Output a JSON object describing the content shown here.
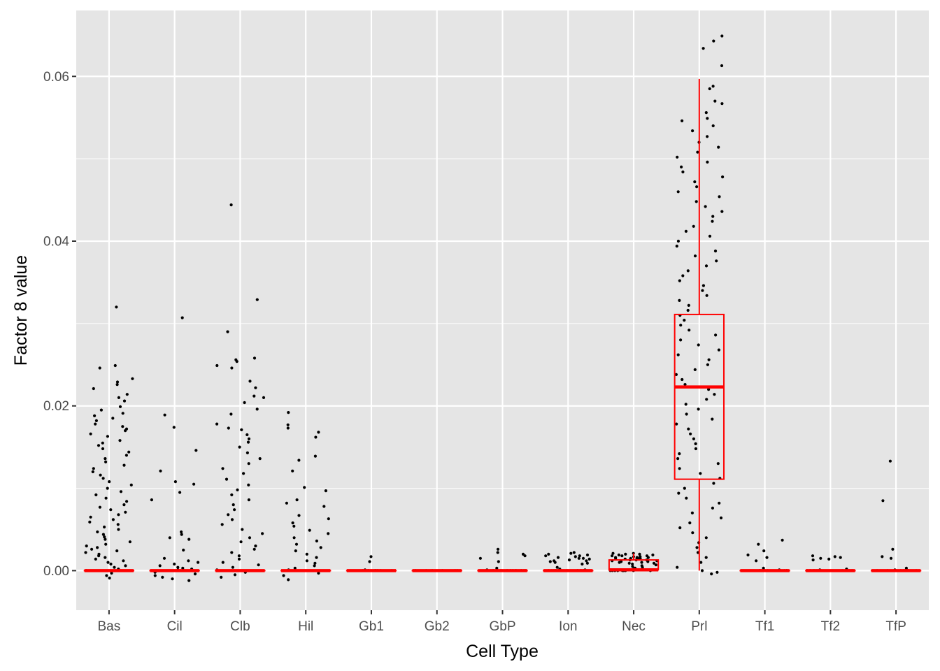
{
  "chart_data": {
    "type": "box_jitter",
    "xlabel": "Cell Type",
    "ylabel": "Factor 8 value",
    "ylim": [
      -0.0048,
      0.068
    ],
    "yticks": [
      0.0,
      0.02,
      0.04,
      0.06
    ],
    "ytick_labels": [
      "0.00",
      "0.02",
      "0.04",
      "0.06"
    ],
    "grid": true,
    "colors": {
      "panel": "#e5e5e5",
      "grid": "#ffffff",
      "box": "#ff0000",
      "points": "#000000"
    },
    "categories": [
      "Bas",
      "Cil",
      "Clb",
      "Hil",
      "Gb1",
      "Gb2",
      "GbP",
      "Ion",
      "Nec",
      "Prl",
      "Tf1",
      "Tf2",
      "TfP"
    ],
    "boxes": [
      {
        "category": "Bas",
        "q1": 0,
        "median": 0,
        "q3": 0,
        "whisker_low": 0,
        "whisker_high": 0
      },
      {
        "category": "Cil",
        "q1": 0,
        "median": 0,
        "q3": 0,
        "whisker_low": 0,
        "whisker_high": 0
      },
      {
        "category": "Clb",
        "q1": 0,
        "median": 0,
        "q3": 0,
        "whisker_low": 0,
        "whisker_high": 0
      },
      {
        "category": "Hil",
        "q1": 0,
        "median": 0,
        "q3": 0,
        "whisker_low": 0,
        "whisker_high": 0
      },
      {
        "category": "Gb1",
        "q1": 0,
        "median": 0,
        "q3": 0,
        "whisker_low": 0,
        "whisker_high": 0
      },
      {
        "category": "Gb2",
        "q1": 0,
        "median": 0,
        "q3": 0,
        "whisker_low": 0,
        "whisker_high": 0
      },
      {
        "category": "GbP",
        "q1": 0,
        "median": 0,
        "q3": 0,
        "whisker_low": 0,
        "whisker_high": 0
      },
      {
        "category": "Ion",
        "q1": 0,
        "median": 0,
        "q3": 0,
        "whisker_low": 0,
        "whisker_high": 0
      },
      {
        "category": "Nec",
        "q1": 0.0001,
        "median": 0.0001,
        "q3": 0.0013,
        "whisker_low": 0.0,
        "whisker_high": 0.0021
      },
      {
        "category": "Prl",
        "q1": 0.0111,
        "median": 0.0223,
        "q3": 0.0311,
        "whisker_low": 0.0,
        "whisker_high": 0.0597
      },
      {
        "category": "Tf1",
        "q1": 0,
        "median": 0,
        "q3": 0,
        "whisker_low": 0,
        "whisker_high": 0
      },
      {
        "category": "Tf2",
        "q1": 0,
        "median": 0,
        "q3": 0,
        "whisker_low": 0,
        "whisker_high": 0
      },
      {
        "category": "TfP",
        "q1": 0,
        "median": 0,
        "q3": 0,
        "whisker_low": 0,
        "whisker_high": 0
      }
    ],
    "jitter_points": [
      {
        "category": "Bas",
        "values": [
          0.032,
          0.0246,
          0.0249,
          0.0233,
          0.0229,
          0.0226,
          0.0221,
          0.0214,
          0.021,
          0.0206,
          0.0199,
          0.0195,
          0.0191,
          0.0188,
          0.0185,
          0.0182,
          0.0178,
          0.0175,
          0.0172,
          0.017,
          0.0166,
          0.0163,
          0.0158,
          0.0155,
          0.0152,
          0.0148,
          0.0144,
          0.014,
          0.0136,
          0.0132,
          0.0128,
          0.0124,
          0.012,
          0.0116,
          0.0112,
          0.0108,
          0.0104,
          0.01,
          0.0096,
          0.0092,
          0.0088,
          0.0084,
          0.008,
          0.0077,
          0.0074,
          0.0071,
          0.0068,
          0.0065,
          0.0062,
          0.0059,
          0.0056,
          0.0053,
          0.005,
          0.0047,
          0.0044,
          0.0041,
          0.0038,
          0.0035,
          0.0032,
          0.003,
          0.0028,
          0.0026,
          0.0024,
          0.0022,
          0.002,
          0.0018,
          0.0016,
          0.0014,
          0.0012,
          0.001,
          0.0008,
          0.0006,
          0.0004,
          0.0002,
          0.0,
          -0.0003,
          -0.0006,
          -0.0009
        ]
      },
      {
        "category": "Cil",
        "values": [
          0.0307,
          0.0189,
          0.0174,
          0.0146,
          0.0121,
          0.0108,
          0.0105,
          0.0095,
          0.0086,
          0.0047,
          0.0044,
          0.004,
          0.0038,
          0.0025,
          0.0015,
          0.0012,
          0.001,
          0.0008,
          0.0006,
          0.0004,
          0.0003,
          0.0002,
          0.0001,
          0.0,
          -0.0002,
          -0.0004,
          -0.0006,
          -0.0008,
          -0.001,
          -0.0012
        ]
      },
      {
        "category": "Clb",
        "values": [
          0.0444,
          0.0329,
          0.029,
          0.0258,
          0.0256,
          0.0254,
          0.0249,
          0.0246,
          0.023,
          0.0222,
          0.0212,
          0.021,
          0.0204,
          0.0196,
          0.019,
          0.0178,
          0.0173,
          0.0171,
          0.0165,
          0.016,
          0.0156,
          0.015,
          0.0143,
          0.0136,
          0.013,
          0.0124,
          0.0118,
          0.0111,
          0.0104,
          0.0098,
          0.0092,
          0.0086,
          0.008,
          0.0074,
          0.0068,
          0.0062,
          0.0056,
          0.005,
          0.0045,
          0.004,
          0.0035,
          0.003,
          0.0026,
          0.0022,
          0.0018,
          0.0014,
          0.001,
          0.0007,
          0.0004,
          0.0001,
          -0.0002,
          -0.0005,
          -0.0008
        ]
      },
      {
        "category": "Hil",
        "values": [
          0.0192,
          0.0177,
          0.0173,
          0.0168,
          0.0162,
          0.0139,
          0.0134,
          0.0121,
          0.0101,
          0.0097,
          0.0086,
          0.0082,
          0.0078,
          0.0067,
          0.0063,
          0.0058,
          0.0054,
          0.0049,
          0.0045,
          0.004,
          0.0036,
          0.0032,
          0.0028,
          0.0024,
          0.002,
          0.0016,
          0.0012,
          0.0009,
          0.0006,
          0.0003,
          0.0001,
          -0.0003,
          -0.0006,
          -0.0011
        ]
      },
      {
        "category": "Gb1",
        "values": [
          0.0017,
          0.0011,
          0.0001,
          0.0,
          0.0,
          0.0,
          0.0,
          0.0,
          0.0,
          0.0,
          0.0,
          0.0
        ]
      },
      {
        "category": "Gb2",
        "values": [
          0.0,
          0.0,
          0.0,
          0.0,
          0.0,
          0.0
        ]
      },
      {
        "category": "GbP",
        "values": [
          0.0026,
          0.0022,
          0.002,
          0.0018,
          0.0015,
          0.0011,
          0.0003,
          0.0001,
          0.0,
          0.0,
          0.0,
          0.0,
          0.0,
          0.0,
          0.0,
          0.0,
          0.0,
          0.0,
          0.0,
          0.0
        ]
      },
      {
        "category": "Ion",
        "values": [
          0.0022,
          0.0021,
          0.002,
          0.0019,
          0.0018,
          0.0018,
          0.0017,
          0.0016,
          0.0015,
          0.0015,
          0.0014,
          0.0013,
          0.0012,
          0.0012,
          0.0011,
          0.001,
          0.0009,
          0.0008,
          0.0004,
          0.0002,
          0.0001,
          0.0,
          0.0,
          0.0,
          0.0,
          0.0,
          0.0,
          0.0,
          0.0,
          0.0,
          0.0,
          0.0,
          0.0,
          0.0
        ]
      },
      {
        "category": "Nec",
        "values": [
          0.0021,
          0.0021,
          0.002,
          0.002,
          0.0019,
          0.0019,
          0.0018,
          0.0018,
          0.0018,
          0.0017,
          0.0017,
          0.0016,
          0.0016,
          0.0016,
          0.0015,
          0.0015,
          0.0015,
          0.0014,
          0.0014,
          0.0014,
          0.0013,
          0.0013,
          0.0013,
          0.0012,
          0.0012,
          0.0012,
          0.0011,
          0.0011,
          0.001,
          0.001,
          0.0009,
          0.0009,
          0.0008,
          0.0007,
          0.0006,
          0.0005,
          0.0004,
          0.0003,
          0.0002,
          0.0001,
          0.0001,
          0.0,
          0.0,
          0.0,
          0.0,
          0.0,
          0.0,
          0.0,
          0.0,
          0.0
        ]
      },
      {
        "category": "Prl",
        "values": [
          0.0649,
          0.0643,
          0.0634,
          0.0613,
          0.0588,
          0.0585,
          0.057,
          0.0567,
          0.0556,
          0.0549,
          0.0546,
          0.054,
          0.0534,
          0.0527,
          0.052,
          0.0514,
          0.0508,
          0.0502,
          0.0496,
          0.049,
          0.0484,
          0.0478,
          0.0472,
          0.0466,
          0.046,
          0.0454,
          0.0448,
          0.0442,
          0.0436,
          0.043,
          0.0424,
          0.0418,
          0.0412,
          0.0406,
          0.04,
          0.0394,
          0.0388,
          0.0382,
          0.0376,
          0.037,
          0.0364,
          0.0358,
          0.0352,
          0.0346,
          0.034,
          0.0334,
          0.0328,
          0.0322,
          0.0316,
          0.031,
          0.0304,
          0.0298,
          0.0292,
          0.0286,
          0.028,
          0.0274,
          0.0268,
          0.0262,
          0.0256,
          0.025,
          0.0244,
          0.0238,
          0.0232,
          0.0226,
          0.022,
          0.0214,
          0.0208,
          0.0202,
          0.0196,
          0.019,
          0.0184,
          0.0178,
          0.0172,
          0.0166,
          0.016,
          0.0154,
          0.0148,
          0.0142,
          0.0136,
          0.013,
          0.0124,
          0.0118,
          0.0112,
          0.0106,
          0.01,
          0.0094,
          0.0088,
          0.0082,
          0.0076,
          0.007,
          0.0064,
          0.0058,
          0.0052,
          0.0046,
          0.004,
          0.0034,
          0.0028,
          0.0022,
          0.0016,
          0.001,
          0.0004,
          0.0,
          -0.0002,
          -0.0004
        ]
      },
      {
        "category": "Tf1",
        "values": [
          0.0037,
          0.0032,
          0.0024,
          0.0019,
          0.0016,
          0.0012,
          0.0003,
          0.0001,
          0.0,
          0.0,
          0.0,
          0.0,
          0.0,
          0.0,
          0.0,
          0.0,
          0.0,
          0.0,
          0.0,
          0.0
        ]
      },
      {
        "category": "Tf2",
        "values": [
          0.0018,
          0.0017,
          0.0016,
          0.0015,
          0.0014,
          0.0013,
          0.0002,
          0.0001,
          0.0,
          0.0,
          0.0,
          0.0,
          0.0,
          0.0,
          0.0,
          0.0,
          0.0,
          0.0
        ]
      },
      {
        "category": "TfP",
        "values": [
          0.0133,
          0.0085,
          0.0026,
          0.0017,
          0.0015,
          0.0003,
          0.0001,
          0.0,
          0.0,
          0.0,
          0.0,
          0.0,
          0.0,
          0.0,
          0.0,
          0.0
        ]
      }
    ]
  }
}
